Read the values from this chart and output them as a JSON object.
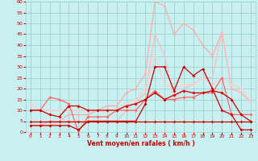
{
  "xlabel": "Vent moyen/en rafales ( km/h )",
  "xlim": [
    -0.5,
    23.5
  ],
  "ylim": [
    0,
    60
  ],
  "yticks": [
    0,
    5,
    10,
    15,
    20,
    25,
    30,
    35,
    40,
    45,
    50,
    55,
    60
  ],
  "xticks": [
    0,
    1,
    2,
    3,
    4,
    5,
    6,
    7,
    8,
    9,
    10,
    11,
    12,
    13,
    14,
    15,
    16,
    17,
    18,
    19,
    20,
    21,
    22,
    23
  ],
  "bg_color": "#c8f0f0",
  "grid_color": "#a0d0d0",
  "text_color": "#cc0000",
  "series": [
    {
      "x": [
        0,
        1,
        2,
        3,
        4,
        5,
        6,
        7,
        8,
        9,
        10,
        11,
        12,
        13,
        14,
        15,
        16,
        17,
        18,
        19,
        20,
        21,
        22,
        23
      ],
      "y": [
        3,
        3,
        5,
        5,
        8,
        8,
        8,
        10,
        12,
        12,
        18,
        20,
        27,
        60,
        58,
        45,
        50,
        47,
        40,
        35,
        46,
        20,
        18,
        14
      ],
      "color": "#ffaaaa",
      "lw": 0.9,
      "marker": "^",
      "ms": 2.0,
      "alpha": 1.0
    },
    {
      "x": [
        0,
        1,
        2,
        3,
        4,
        5,
        6,
        7,
        8,
        9,
        10,
        11,
        12,
        13,
        14,
        15,
        16,
        17,
        18,
        19,
        20,
        21,
        22,
        23
      ],
      "y": [
        3,
        3,
        3,
        5,
        5,
        5,
        5,
        5,
        5,
        5,
        10,
        14,
        18,
        45,
        35,
        15,
        20,
        22,
        25,
        25,
        46,
        20,
        18,
        14
      ],
      "color": "#ffbbbb",
      "lw": 0.9,
      "marker": null,
      "ms": 0,
      "alpha": 1.0
    },
    {
      "x": [
        0,
        1,
        2,
        3,
        4,
        5,
        6,
        7,
        8,
        9,
        10,
        11,
        12,
        13,
        14,
        15,
        16,
        17,
        18,
        19,
        20,
        21,
        22,
        23
      ],
      "y": [
        13,
        10,
        10,
        10,
        10,
        10,
        10,
        10,
        10,
        10,
        13,
        15,
        20,
        35,
        22,
        20,
        22,
        22,
        25,
        22,
        25,
        22,
        20,
        14
      ],
      "color": "#ffcccc",
      "lw": 0.9,
      "marker": "D",
      "ms": 1.8,
      "alpha": 1.0
    },
    {
      "x": [
        0,
        1,
        2,
        3,
        4,
        5,
        6,
        7,
        8,
        9,
        10,
        11,
        12,
        13,
        14,
        15,
        16,
        17,
        18,
        19,
        20,
        21,
        22,
        23
      ],
      "y": [
        10,
        10,
        16,
        15,
        13,
        0,
        7,
        7,
        7,
        10,
        10,
        10,
        15,
        19,
        15,
        15,
        16,
        16,
        18,
        18,
        25,
        8,
        8,
        8
      ],
      "color": "#ff6666",
      "lw": 0.9,
      "marker": "D",
      "ms": 2.0,
      "alpha": 1.0
    },
    {
      "x": [
        0,
        1,
        2,
        3,
        4,
        5,
        6,
        7,
        8,
        9,
        10,
        11,
        12,
        13,
        14,
        15,
        16,
        17,
        18,
        19,
        20,
        21,
        22,
        23
      ],
      "y": [
        10,
        10,
        8,
        7,
        12,
        12,
        10,
        10,
        10,
        10,
        12,
        13,
        15,
        18,
        15,
        17,
        19,
        18,
        18,
        19,
        18,
        15,
        8,
        5
      ],
      "color": "#cc0000",
      "lw": 0.9,
      "marker": "D",
      "ms": 2.0,
      "alpha": 1.0
    },
    {
      "x": [
        0,
        1,
        2,
        3,
        4,
        5,
        6,
        7,
        8,
        9,
        10,
        11,
        12,
        13,
        14,
        15,
        16,
        17,
        18,
        19,
        20,
        21,
        22,
        23
      ],
      "y": [
        3,
        3,
        3,
        3,
        3,
        1,
        5,
        5,
        5,
        5,
        5,
        5,
        13,
        30,
        30,
        19,
        30,
        26,
        29,
        20,
        10,
        8,
        1,
        1
      ],
      "color": "#cc0000",
      "lw": 0.9,
      "marker": "D",
      "ms": 2.0,
      "alpha": 1.0
    },
    {
      "x": [
        0,
        1,
        2,
        3,
        4,
        5,
        6,
        7,
        8,
        9,
        10,
        11,
        12,
        13,
        14,
        15,
        16,
        17,
        18,
        19,
        20,
        21,
        22,
        23
      ],
      "y": [
        5,
        5,
        5,
        5,
        5,
        5,
        5,
        5,
        5,
        5,
        5,
        5,
        5,
        5,
        5,
        5,
        5,
        5,
        5,
        5,
        5,
        5,
        5,
        5
      ],
      "color": "#cc0000",
      "lw": 0.9,
      "marker": "D",
      "ms": 1.8,
      "alpha": 1.0
    }
  ]
}
